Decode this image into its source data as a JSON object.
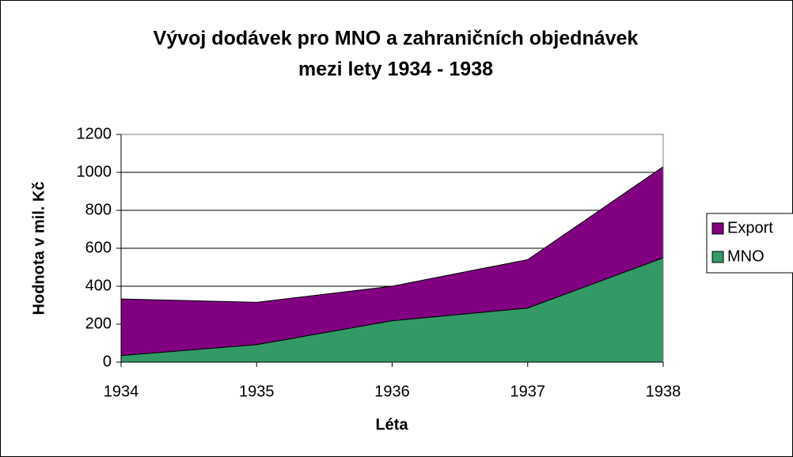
{
  "chart_data": {
    "type": "stacked-area",
    "title": [
      "Vývoj dodávek pro MNO a zahraničních objednávek",
      "mezi lety 1934 - 1938"
    ],
    "x_label": "Léta",
    "y_label": "Hodnota v mil. Kč",
    "x": [
      1934,
      1935,
      1936,
      1937,
      1938
    ],
    "xlim": [
      1934,
      1938
    ],
    "xticks": [
      1934,
      1935,
      1936,
      1937,
      1938
    ],
    "ylim": [
      0,
      1200
    ],
    "yticks": [
      0,
      200,
      400,
      600,
      800,
      1000,
      1200
    ],
    "grid": true,
    "legend": "right",
    "series": [
      {
        "name": "MNO",
        "color": "#339966",
        "values": [
          35,
          92,
          218,
          285,
          550
        ]
      },
      {
        "name": "Export",
        "color": "#800080",
        "values": [
          298,
          223,
          182,
          255,
          480
        ]
      }
    ]
  }
}
